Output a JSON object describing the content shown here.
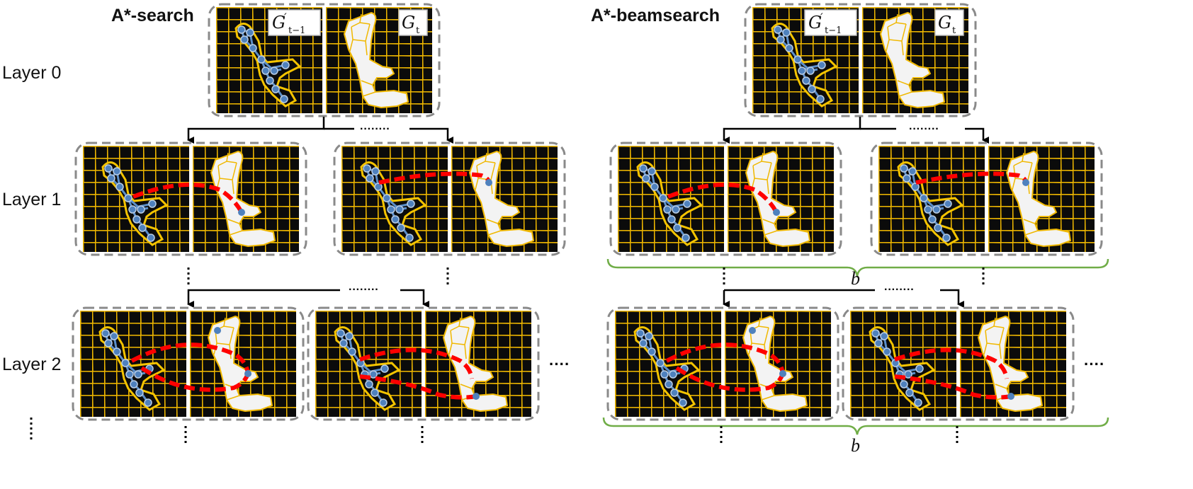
{
  "panels": [
    {
      "title": "A*-search"
    },
    {
      "title": "A*-beamsearch"
    }
  ],
  "layers": [
    "Layer 0",
    "Layer 1",
    "Layer 2"
  ],
  "graph_labels": {
    "prev": {
      "base": "G",
      "prime": "′",
      "sub": "t−1"
    },
    "curr": {
      "base": "G",
      "sub": "t"
    }
  },
  "beam_label": "b",
  "ellipsis_h": "········",
  "ellipsis_more": "····",
  "colors": {
    "grid_line": "#f0b800",
    "background": "#0b0b0b",
    "node": "#4f81bd",
    "graph_edge": "#5b8ec9",
    "match_edge": "#ff0000",
    "box_border": "#8a8a8a",
    "brace": "#70ad47",
    "arrow": "#000000",
    "region": "#ffffff"
  },
  "icons": [
    "graph-node-icon",
    "arrow-down-icon",
    "brace-icon"
  ]
}
